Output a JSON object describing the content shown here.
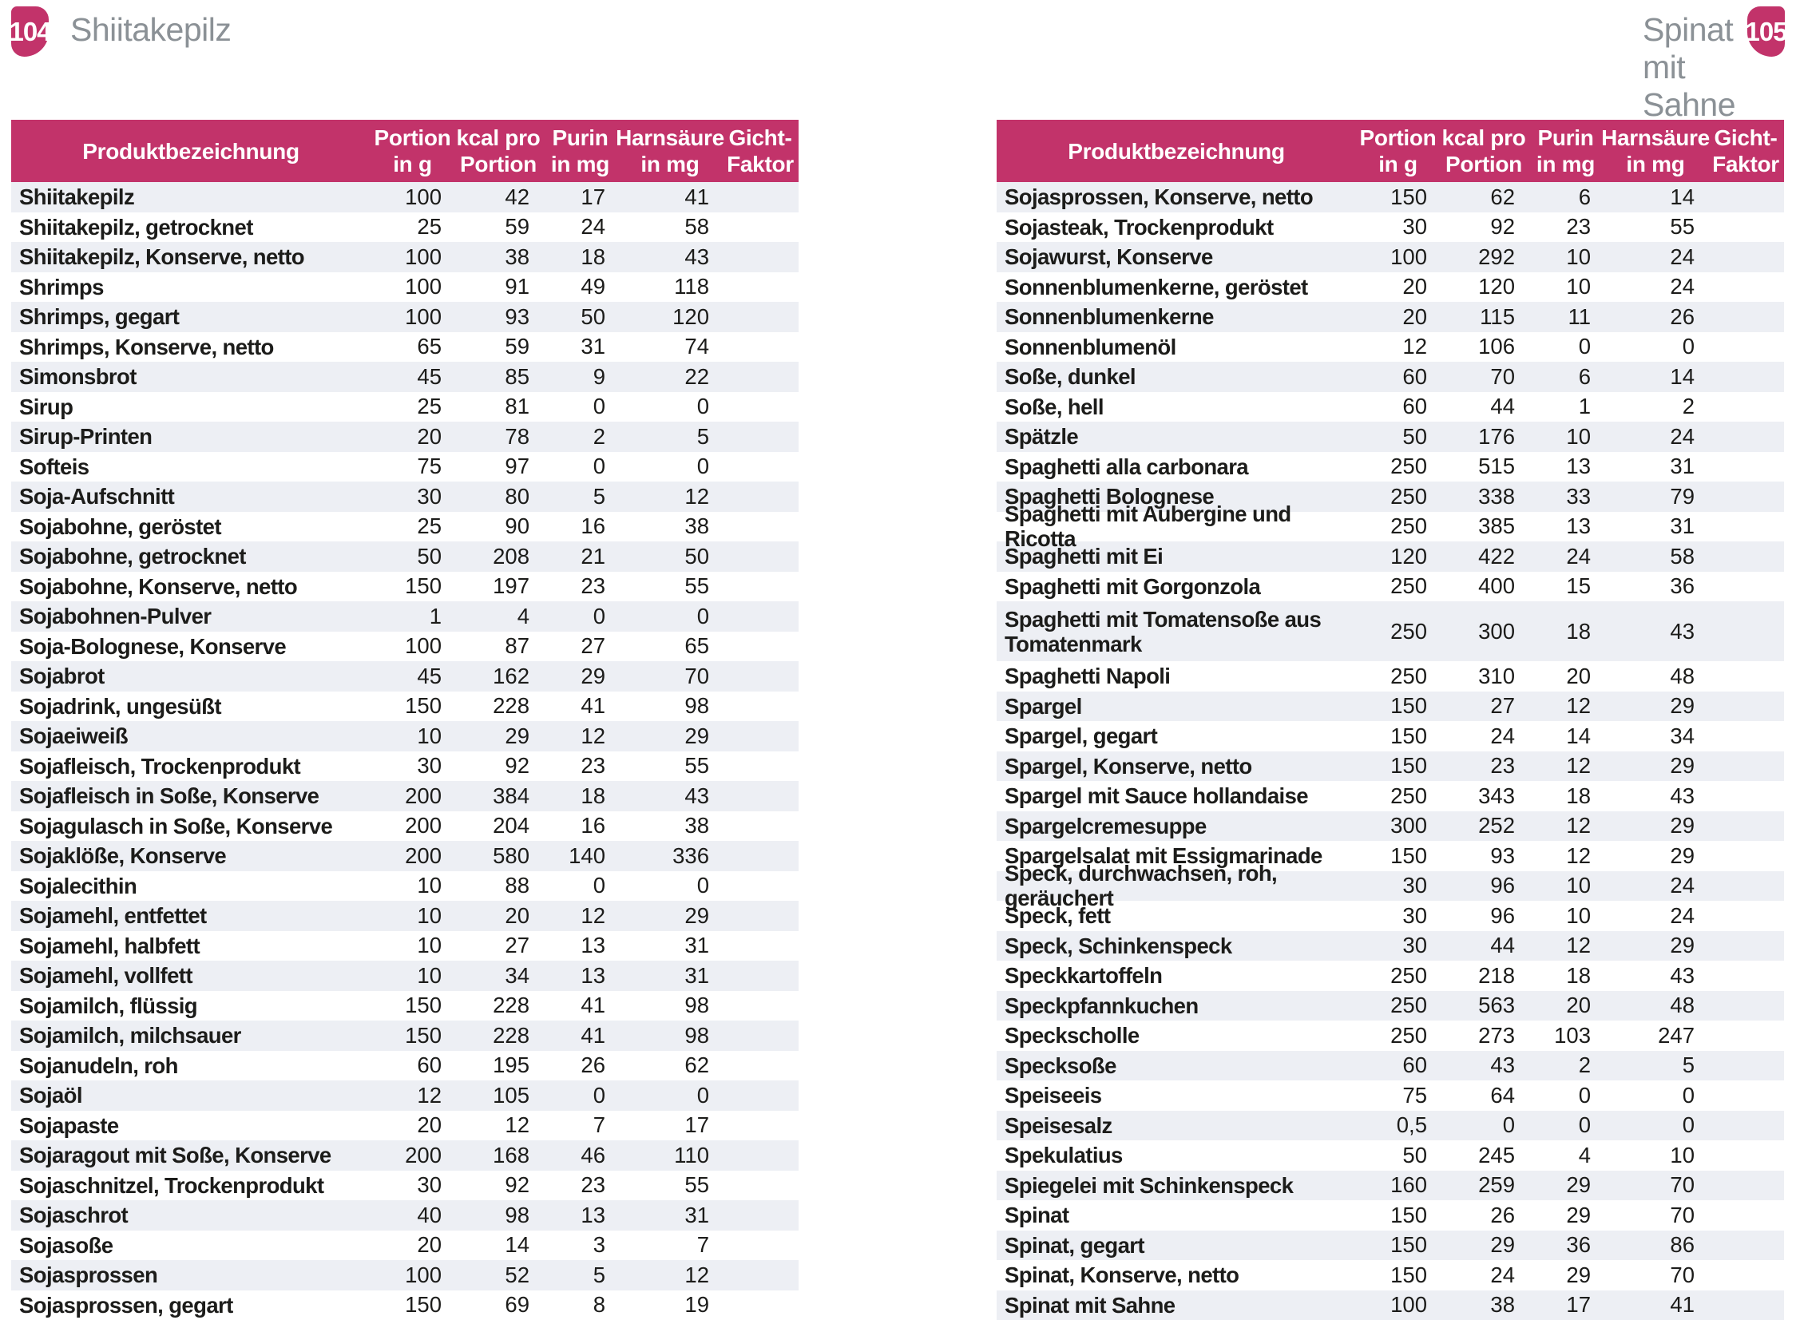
{
  "colors": {
    "accent_magenta": "#c2336a",
    "title_gray": "#8b9196",
    "row_alt": "#edeff4",
    "light_red": "#bd2129",
    "light_yellow": "#dda621",
    "light_green": "#2f9c46",
    "light_off": "#ebeae5"
  },
  "headers": [
    {
      "line1": "Produktbezeichnung",
      "line2": ""
    },
    {
      "line1": "Portion",
      "line2": "in g"
    },
    {
      "line1": "kcal pro",
      "line2": "Portion"
    },
    {
      "line1": "Purin",
      "line2": "in mg"
    },
    {
      "line1": "Harnsäure",
      "line2": "in mg"
    },
    {
      "line1": "Gicht-",
      "line2": "Faktor"
    }
  ],
  "left_page": {
    "page_number": "104",
    "running_title": "Shiitakepilz",
    "table": {
      "rows": [
        {
          "name": "Shiitakepilz",
          "portion": "100",
          "kcal": "42",
          "purin": "17",
          "harnsaeure": "41",
          "light": "red"
        },
        {
          "name": "Shiitakepilz, getrocknet",
          "portion": "25",
          "kcal": "59",
          "purin": "24",
          "harnsaeure": "58",
          "light": "yellow"
        },
        {
          "name": "Shiitakepilz, Konserve, netto",
          "portion": "100",
          "kcal": "38",
          "purin": "18",
          "harnsaeure": "43",
          "light": "green"
        },
        {
          "name": "Shrimps",
          "portion": "100",
          "kcal": "91",
          "purin": "49",
          "harnsaeure": "118",
          "light": "red"
        },
        {
          "name": "Shrimps, gegart",
          "portion": "100",
          "kcal": "93",
          "purin": "50",
          "harnsaeure": "120",
          "light": "red"
        },
        {
          "name": "Shrimps, Konserve, netto",
          "portion": "65",
          "kcal": "59",
          "purin": "31",
          "harnsaeure": "74",
          "light": "yellow"
        },
        {
          "name": "Simonsbrot",
          "portion": "45",
          "kcal": "85",
          "purin": "9",
          "harnsaeure": "22",
          "light": "green"
        },
        {
          "name": "Sirup",
          "portion": "25",
          "kcal": "81",
          "purin": "0",
          "harnsaeure": "0",
          "light": "green"
        },
        {
          "name": "Sirup-Printen",
          "portion": "20",
          "kcal": "78",
          "purin": "2",
          "harnsaeure": "5",
          "light": "green"
        },
        {
          "name": "Softeis",
          "portion": "75",
          "kcal": "97",
          "purin": "0",
          "harnsaeure": "0",
          "light": "green"
        },
        {
          "name": "Soja-Aufschnitt",
          "portion": "30",
          "kcal": "80",
          "purin": "5",
          "harnsaeure": "12",
          "light": "green"
        },
        {
          "name": "Sojabohne, geröstet",
          "portion": "25",
          "kcal": "90",
          "purin": "16",
          "harnsaeure": "38",
          "light": "green"
        },
        {
          "name": "Sojabohne, getrocknet",
          "portion": "50",
          "kcal": "208",
          "purin": "21",
          "harnsaeure": "50",
          "light": "yellow"
        },
        {
          "name": "Sojabohne, Konserve, netto",
          "portion": "150",
          "kcal": "197",
          "purin": "23",
          "harnsaeure": "55",
          "light": "yellow"
        },
        {
          "name": "Sojabohnen-Pulver",
          "portion": "1",
          "kcal": "4",
          "purin": "0",
          "harnsaeure": "0",
          "light": "green"
        },
        {
          "name": "Soja-Bolognese, Konserve",
          "portion": "100",
          "kcal": "87",
          "purin": "27",
          "harnsaeure": "65",
          "light": "yellow"
        },
        {
          "name": "Sojabrot",
          "portion": "45",
          "kcal": "162",
          "purin": "29",
          "harnsaeure": "70",
          "light": "yellow"
        },
        {
          "name": "Sojadrink, ungesüßt",
          "portion": "150",
          "kcal": "228",
          "purin": "41",
          "harnsaeure": "98",
          "light": "red"
        },
        {
          "name": "Sojaeiweiß",
          "portion": "10",
          "kcal": "29",
          "purin": "12",
          "harnsaeure": "29",
          "light": "green"
        },
        {
          "name": "Sojafleisch, Trockenprodukt",
          "portion": "30",
          "kcal": "92",
          "purin": "23",
          "harnsaeure": "55",
          "light": "yellow"
        },
        {
          "name": "Sojafleisch in Soße, Konserve",
          "portion": "200",
          "kcal": "384",
          "purin": "18",
          "harnsaeure": "43",
          "light": "green"
        },
        {
          "name": "Sojagulasch in Soße, Konserve",
          "portion": "200",
          "kcal": "204",
          "purin": "16",
          "harnsaeure": "38",
          "light": "green"
        },
        {
          "name": "Sojaklöße, Konserve",
          "portion": "200",
          "kcal": "580",
          "purin": "140",
          "harnsaeure": "336",
          "light": "red"
        },
        {
          "name": "Sojalecithin",
          "portion": "10",
          "kcal": "88",
          "purin": "0",
          "harnsaeure": "0",
          "light": "green"
        },
        {
          "name": "Sojamehl, entfettet",
          "portion": "10",
          "kcal": "20",
          "purin": "12",
          "harnsaeure": "29",
          "light": "green"
        },
        {
          "name": "Sojamehl, halbfett",
          "portion": "10",
          "kcal": "27",
          "purin": "13",
          "harnsaeure": "31",
          "light": "green"
        },
        {
          "name": "Sojamehl, vollfett",
          "portion": "10",
          "kcal": "34",
          "purin": "13",
          "harnsaeure": "31",
          "light": "green"
        },
        {
          "name": "Sojamilch, flüssig",
          "portion": "150",
          "kcal": "228",
          "purin": "41",
          "harnsaeure": "98",
          "light": "red"
        },
        {
          "name": "Sojamilch, milchsauer",
          "portion": "150",
          "kcal": "228",
          "purin": "41",
          "harnsaeure": "98",
          "light": "red"
        },
        {
          "name": "Sojanudeln, roh",
          "portion": "60",
          "kcal": "195",
          "purin": "26",
          "harnsaeure": "62",
          "light": "yellow"
        },
        {
          "name": "Sojaöl",
          "portion": "12",
          "kcal": "105",
          "purin": "0",
          "harnsaeure": "0",
          "light": "green"
        },
        {
          "name": "Sojapaste",
          "portion": "20",
          "kcal": "12",
          "purin": "7",
          "harnsaeure": "17",
          "light": "green"
        },
        {
          "name": "Sojaragout mit Soße, Konserve",
          "portion": "200",
          "kcal": "168",
          "purin": "46",
          "harnsaeure": "110",
          "light": "red"
        },
        {
          "name": "Sojaschnitzel, Trockenprodukt",
          "portion": "30",
          "kcal": "92",
          "purin": "23",
          "harnsaeure": "55",
          "light": "yellow"
        },
        {
          "name": "Sojaschrot",
          "portion": "40",
          "kcal": "98",
          "purin": "13",
          "harnsaeure": "31",
          "light": "green"
        },
        {
          "name": "Sojasoße",
          "portion": "20",
          "kcal": "14",
          "purin": "3",
          "harnsaeure": "7",
          "light": "green"
        },
        {
          "name": "Sojasprossen",
          "portion": "100",
          "kcal": "52",
          "purin": "5",
          "harnsaeure": "12",
          "light": "green"
        },
        {
          "name": "Sojasprossen, gegart",
          "portion": "150",
          "kcal": "69",
          "purin": "8",
          "harnsaeure": "19",
          "light": "green"
        }
      ]
    }
  },
  "right_page": {
    "page_number": "105",
    "running_title": "Spinat mit Sahne",
    "table": {
      "rows": [
        {
          "name": "Sojasprossen, Konserve, netto",
          "portion": "150",
          "kcal": "62",
          "purin": "6",
          "harnsaeure": "14",
          "light": "green"
        },
        {
          "name": "Sojasteak, Trockenprodukt",
          "portion": "30",
          "kcal": "92",
          "purin": "23",
          "harnsaeure": "55",
          "light": "yellow"
        },
        {
          "name": "Sojawurst, Konserve",
          "portion": "100",
          "kcal": "292",
          "purin": "10",
          "harnsaeure": "24",
          "light": "green"
        },
        {
          "name": "Sonnenblumenkerne, geröstet",
          "portion": "20",
          "kcal": "120",
          "purin": "10",
          "harnsaeure": "24",
          "light": "green"
        },
        {
          "name": "Sonnenblumenkerne",
          "portion": "20",
          "kcal": "115",
          "purin": "11",
          "harnsaeure": "26",
          "light": "green"
        },
        {
          "name": "Sonnenblumenöl",
          "portion": "12",
          "kcal": "106",
          "purin": "0",
          "harnsaeure": "0",
          "light": "green"
        },
        {
          "name": "Soße, dunkel",
          "portion": "60",
          "kcal": "70",
          "purin": "6",
          "harnsaeure": "14",
          "light": "green"
        },
        {
          "name": "Soße, hell",
          "portion": "60",
          "kcal": "44",
          "purin": "1",
          "harnsaeure": "2",
          "light": "green"
        },
        {
          "name": "Spätzle",
          "portion": "50",
          "kcal": "176",
          "purin": "10",
          "harnsaeure": "24",
          "light": "green"
        },
        {
          "name": "Spaghetti alla carbonara",
          "portion": "250",
          "kcal": "515",
          "purin": "13",
          "harnsaeure": "31",
          "light": "green"
        },
        {
          "name": "Spaghetti Bolognese",
          "portion": "250",
          "kcal": "338",
          "purin": "33",
          "harnsaeure": "79",
          "light": "yellow"
        },
        {
          "name": "Spaghetti mit Aubergine und Ricotta",
          "portion": "250",
          "kcal": "385",
          "purin": "13",
          "harnsaeure": "31",
          "light": "green"
        },
        {
          "name": "Spaghetti mit Ei",
          "portion": "120",
          "kcal": "422",
          "purin": "24",
          "harnsaeure": "58",
          "light": "yellow"
        },
        {
          "name": "Spaghetti mit Gorgonzola",
          "portion": "250",
          "kcal": "400",
          "purin": "15",
          "harnsaeure": "36",
          "light": "green"
        },
        {
          "name": "Spaghetti mit Tomatensoße aus Tomatenmark",
          "portion": "250",
          "kcal": "300",
          "purin": "18",
          "harnsaeure": "43",
          "light": "green",
          "tall": true
        },
        {
          "name": "Spaghetti Napoli",
          "portion": "250",
          "kcal": "310",
          "purin": "20",
          "harnsaeure": "48",
          "light": "green"
        },
        {
          "name": "Spargel",
          "portion": "150",
          "kcal": "27",
          "purin": "12",
          "harnsaeure": "29",
          "light": "green"
        },
        {
          "name": "Spargel, gegart",
          "portion": "150",
          "kcal": "24",
          "purin": "14",
          "harnsaeure": "34",
          "light": "green"
        },
        {
          "name": "Spargel, Konserve, netto",
          "portion": "150",
          "kcal": "23",
          "purin": "12",
          "harnsaeure": "29",
          "light": "green"
        },
        {
          "name": "Spargel mit Sauce hollandaise",
          "portion": "250",
          "kcal": "343",
          "purin": "18",
          "harnsaeure": "43",
          "light": "green"
        },
        {
          "name": "Spargelcremesuppe",
          "portion": "300",
          "kcal": "252",
          "purin": "12",
          "harnsaeure": "29",
          "light": "green"
        },
        {
          "name": "Spargelsalat mit Essigmarinade",
          "portion": "150",
          "kcal": "93",
          "purin": "12",
          "harnsaeure": "29",
          "light": "green"
        },
        {
          "name": "Speck, durchwachsen, roh, geräuchert",
          "portion": "30",
          "kcal": "96",
          "purin": "10",
          "harnsaeure": "24",
          "light": "green"
        },
        {
          "name": "Speck, fett",
          "portion": "30",
          "kcal": "96",
          "purin": "10",
          "harnsaeure": "24",
          "light": "green"
        },
        {
          "name": "Speck, Schinkenspeck",
          "portion": "30",
          "kcal": "44",
          "purin": "12",
          "harnsaeure": "29",
          "light": "green"
        },
        {
          "name": "Speckkartoffeln",
          "portion": "250",
          "kcal": "218",
          "purin": "18",
          "harnsaeure": "43",
          "light": "green"
        },
        {
          "name": "Speckpfannkuchen",
          "portion": "250",
          "kcal": "563",
          "purin": "20",
          "harnsaeure": "48",
          "light": "green"
        },
        {
          "name": "Speckscholle",
          "portion": "250",
          "kcal": "273",
          "purin": "103",
          "harnsaeure": "247",
          "light": "red"
        },
        {
          "name": "Specksoße",
          "portion": "60",
          "kcal": "43",
          "purin": "2",
          "harnsaeure": "5",
          "light": "green"
        },
        {
          "name": "Speiseeis",
          "portion": "75",
          "kcal": "64",
          "purin": "0",
          "harnsaeure": "0",
          "light": "green"
        },
        {
          "name": "Speisesalz",
          "portion": "0,5",
          "kcal": "0",
          "purin": "0",
          "harnsaeure": "0",
          "light": "green"
        },
        {
          "name": "Spekulatius",
          "portion": "50",
          "kcal": "245",
          "purin": "4",
          "harnsaeure": "10",
          "light": "green"
        },
        {
          "name": "Spiegelei mit Schinkenspeck",
          "portion": "160",
          "kcal": "259",
          "purin": "29",
          "harnsaeure": "70",
          "light": "yellow"
        },
        {
          "name": "Spinat",
          "portion": "150",
          "kcal": "26",
          "purin": "29",
          "harnsaeure": "70",
          "light": "yellow"
        },
        {
          "name": "Spinat, gegart",
          "portion": "150",
          "kcal": "29",
          "purin": "36",
          "harnsaeure": "86",
          "light": "red"
        },
        {
          "name": "Spinat, Konserve, netto",
          "portion": "150",
          "kcal": "24",
          "purin": "29",
          "harnsaeure": "70",
          "light": "yellow"
        },
        {
          "name": "Spinat mit Sahne",
          "portion": "100",
          "kcal": "38",
          "purin": "17",
          "harnsaeure": "41",
          "light": "green"
        }
      ]
    }
  }
}
